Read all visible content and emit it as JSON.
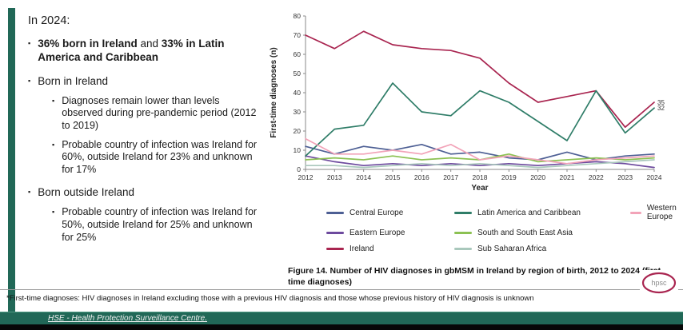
{
  "slide": {
    "heading": "In 2024:",
    "bullets": [
      {
        "level": 1,
        "segments": [
          {
            "text": "36% born in Ireland",
            "bold": true
          },
          {
            "text": " and ",
            "bold": false
          },
          {
            "text": "33% in Latin America and Caribbean",
            "bold": true
          }
        ]
      },
      {
        "level": 1,
        "segments": [
          {
            "text": "Born in Ireland",
            "bold": false
          }
        ]
      },
      {
        "level": 2,
        "segments": [
          {
            "text": "Diagnoses remain lower than levels observed during pre-pandemic period (2012 to 2019)",
            "bold": false
          }
        ]
      },
      {
        "level": 2,
        "segments": [
          {
            "text": "Probable country of infection was Ireland for 60%, outside Ireland for 23% and unknown for 17%",
            "bold": false
          }
        ]
      },
      {
        "level": 1,
        "segments": [
          {
            "text": "Born outside Ireland",
            "bold": false
          }
        ]
      },
      {
        "level": 2,
        "segments": [
          {
            "text": "Probable country of infection was Ireland for 50%, outside Ireland for 25% and unknown for 25%",
            "bold": false
          }
        ]
      }
    ]
  },
  "chart_data": {
    "type": "line",
    "x": [
      2012,
      2013,
      2014,
      2015,
      2016,
      2017,
      2018,
      2019,
      2020,
      2021,
      2022,
      2023,
      2024
    ],
    "series": [
      {
        "name": "Central Europe",
        "color": "#4d5f94",
        "values": [
          12,
          8,
          12,
          10,
          13,
          8,
          9,
          6,
          5,
          9,
          5,
          7,
          8
        ]
      },
      {
        "name": "Eastern Europe",
        "color": "#6d4a9e",
        "values": [
          7,
          4,
          2,
          3,
          2,
          3,
          2,
          3,
          2,
          3,
          4,
          3,
          1
        ]
      },
      {
        "name": "Ireland",
        "color": "#a92550",
        "values": [
          70,
          63,
          72,
          65,
          63,
          62,
          58,
          45,
          35,
          38,
          41,
          22,
          35
        ]
      },
      {
        "name": "Latin America and Caribbean",
        "color": "#2f7d68",
        "values": [
          7,
          21,
          23,
          45,
          30,
          28,
          41,
          35,
          25,
          15,
          41,
          19,
          32
        ]
      },
      {
        "name": "South and South East Asia",
        "color": "#8cc152",
        "values": [
          5,
          6,
          5,
          7,
          5,
          6,
          5,
          8,
          4,
          5,
          6,
          5,
          6
        ]
      },
      {
        "name": "Sub Saharan Africa",
        "color": "#a9c8bc",
        "values": [
          2,
          2,
          1,
          2,
          3,
          2,
          3,
          2,
          1,
          2,
          3,
          4,
          5
        ]
      },
      {
        "name": "Western Europe",
        "color": "#f2a3b8",
        "values": [
          16,
          8,
          8,
          10,
          8,
          13,
          5,
          7,
          5,
          3,
          5,
          6,
          7
        ]
      }
    ],
    "legend_order": [
      "Central Europe",
      "Eastern Europe",
      "Ireland",
      "Latin America and Caribbean",
      "South and South East Asia",
      "Sub Saharan Africa",
      "Western Europe"
    ],
    "end_labels": [
      {
        "series": "Ireland",
        "value": "35"
      },
      {
        "series": "Latin America and Caribbean",
        "value": "32"
      }
    ],
    "xlabel": "Year",
    "ylabel": "First-time diagnoses (n)",
    "ylim": [
      0,
      80
    ],
    "yticks": [
      0,
      10,
      20,
      30,
      40,
      50,
      60,
      70,
      80
    ],
    "grid": false,
    "legend_position": "bottom"
  },
  "caption": "Figure 14. Number of HIV diagnoses in gbMSM in Ireland by region of birth, 2012 to 2024 (first-time diagnoses)",
  "footnote": "*First-time diagnoses: HIV diagnoses in Ireland excluding those with a previous HIV diagnosis and those whose previous history of HIV diagnosis is unknown",
  "footer": {
    "text": "HSE - Health Protection Surveillance Centre."
  },
  "logo": {
    "text": "hpsc"
  },
  "colors": {
    "brand_green": "#216857",
    "logo_ring": "#a92550"
  }
}
